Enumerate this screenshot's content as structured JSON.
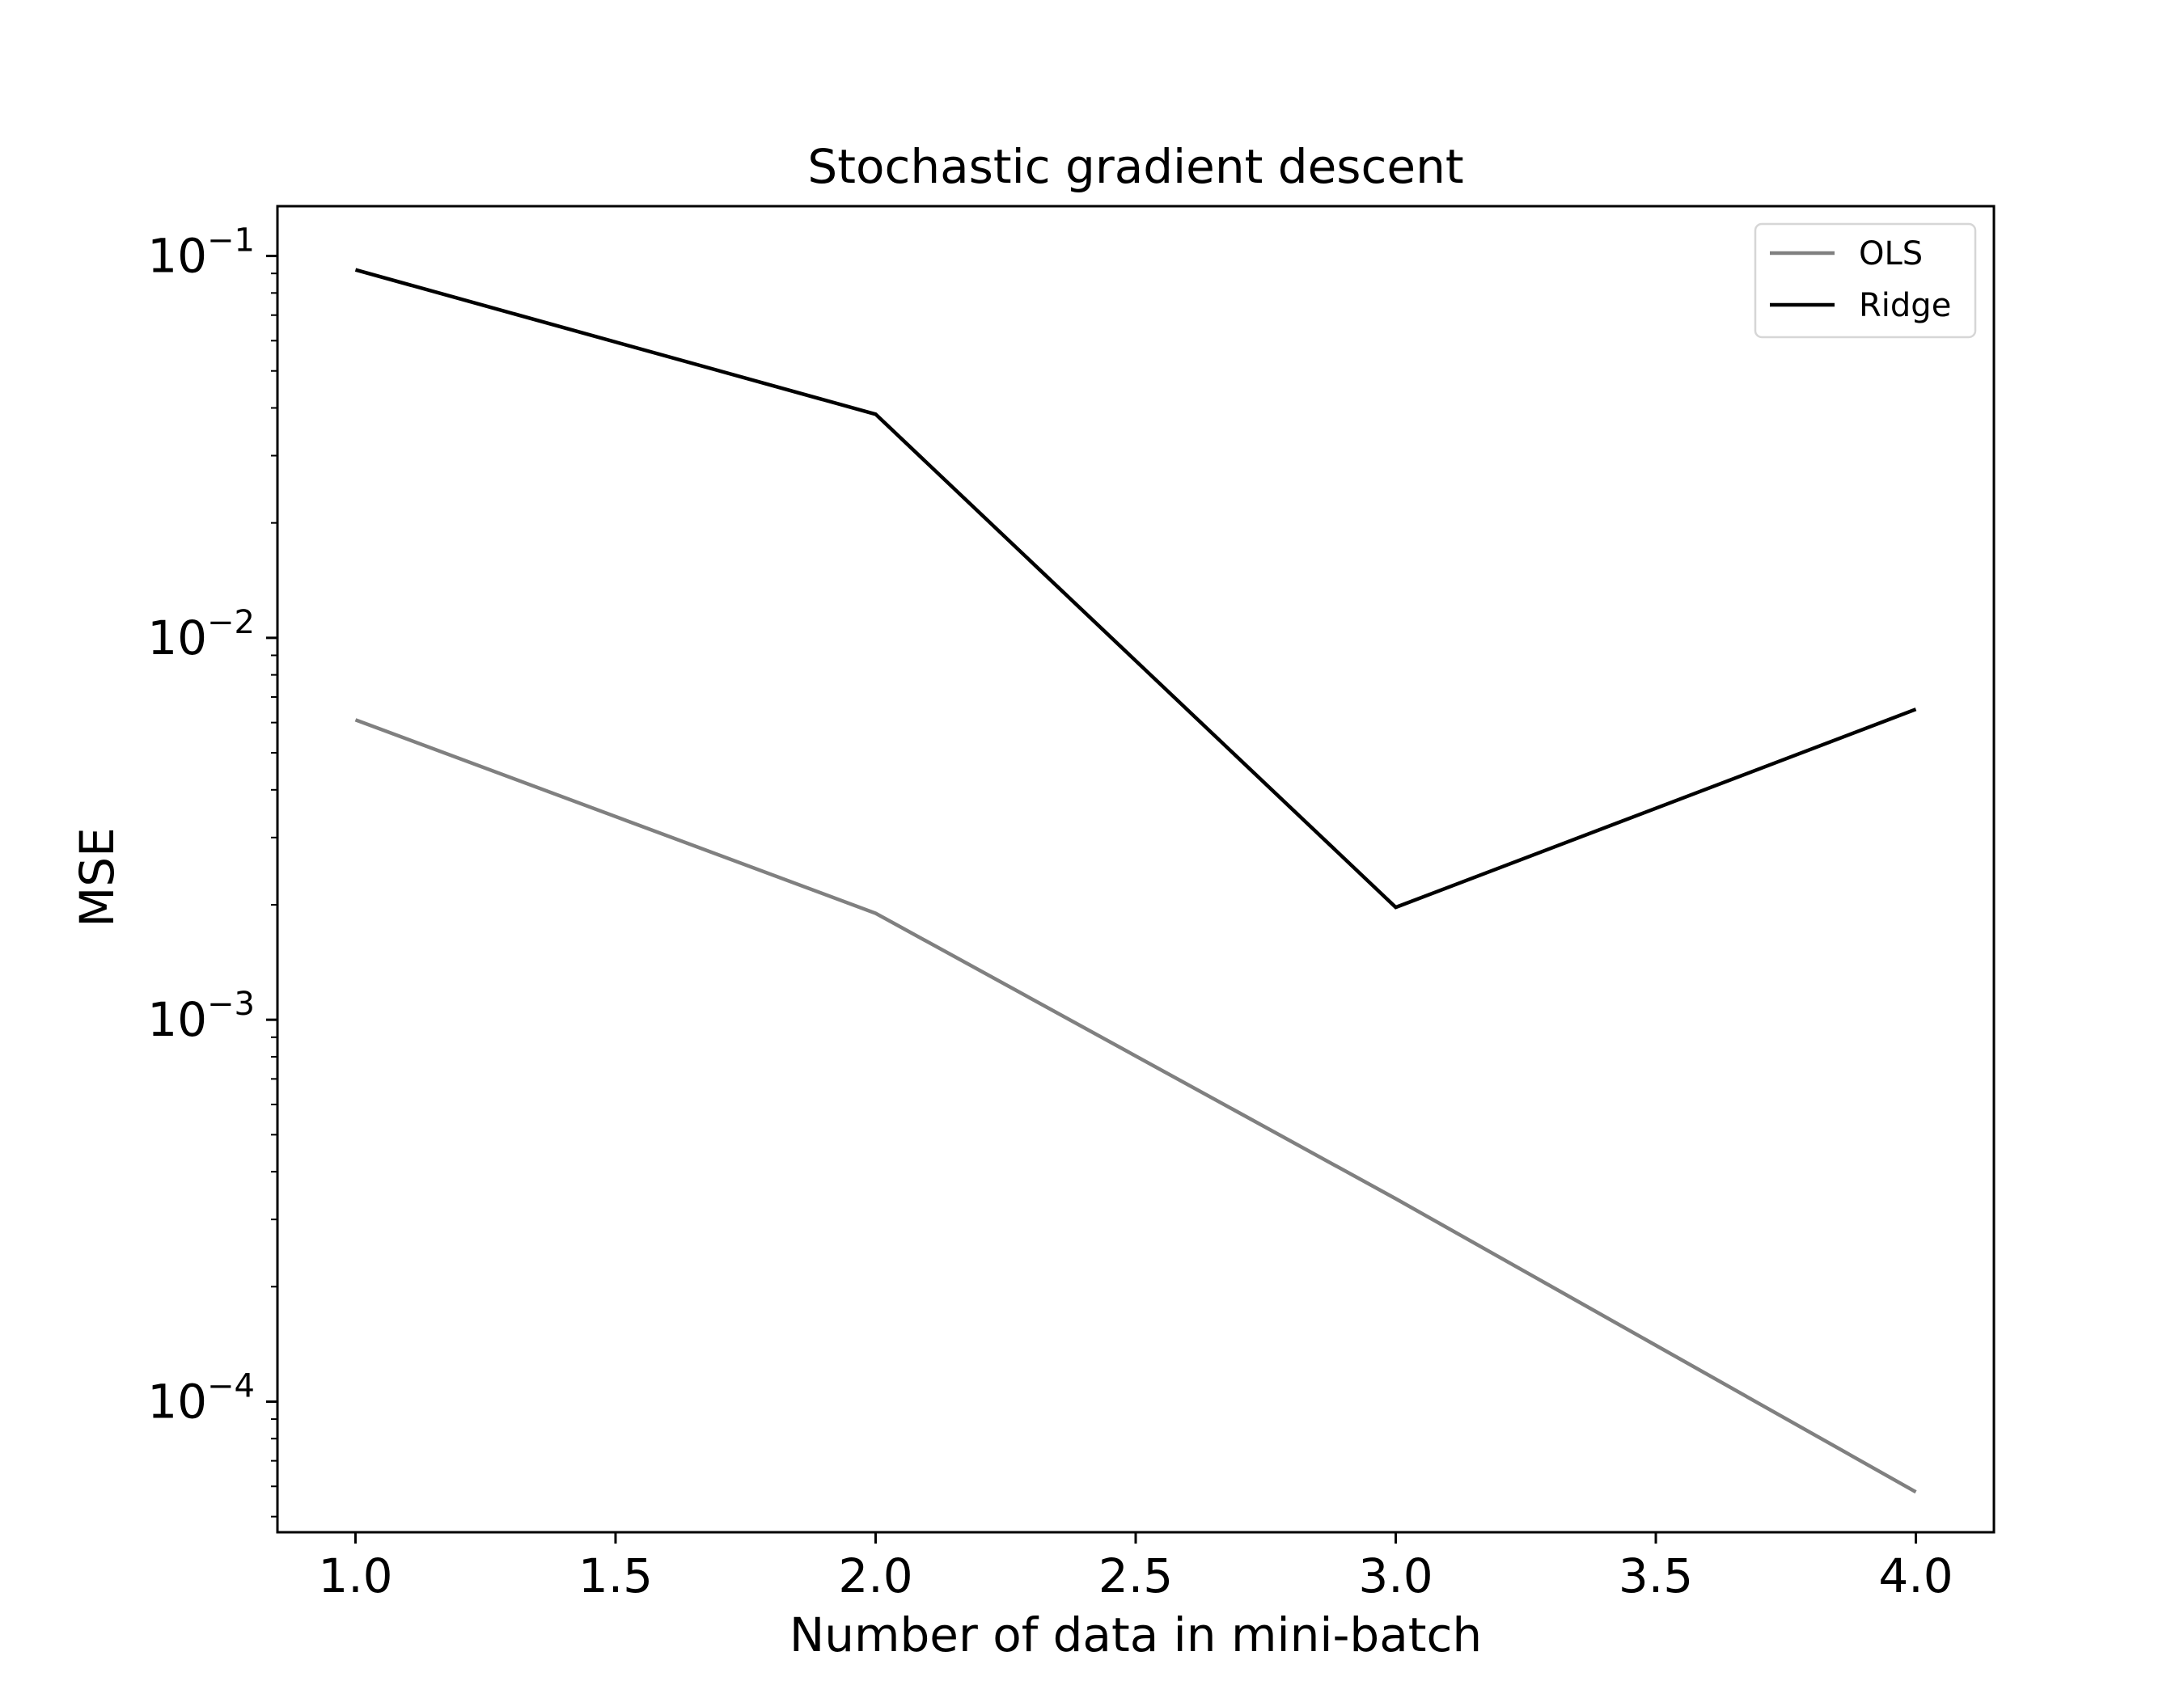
{
  "chart_data": {
    "type": "line",
    "title": "Stochastic gradient descent",
    "xlabel": "Number of data in mini-batch",
    "ylabel": "MSE",
    "yscale": "log",
    "xlim": [
      0.85,
      4.15
    ],
    "ylim": [
      4.55e-05,
      0.135
    ],
    "x_ticks": [
      1.0,
      1.5,
      2.0,
      2.5,
      3.0,
      3.5,
      4.0
    ],
    "x_tick_labels": [
      "1.0",
      "1.5",
      "2.0",
      "2.5",
      "3.0",
      "3.5",
      "4.0"
    ],
    "y_ticks": [
      {
        "value": 0.1,
        "base": "10",
        "exponent": "−1"
      },
      {
        "value": 0.01,
        "base": "10",
        "exponent": "−2"
      },
      {
        "value": 0.001,
        "base": "10",
        "exponent": "−3"
      },
      {
        "value": 0.0001,
        "base": "10",
        "exponent": "−4"
      }
    ],
    "grid": false,
    "legend_position": "top-right",
    "series": [
      {
        "name": "OLS",
        "color": "#808080",
        "x": [
          1,
          2,
          3,
          4
        ],
        "y": [
          0.0061,
          0.0019,
          0.00034,
          5.8e-05
        ]
      },
      {
        "name": "Ridge",
        "color": "#000000",
        "x": [
          1,
          2,
          3,
          4
        ],
        "y": [
          0.092,
          0.0385,
          0.00197,
          0.0065
        ]
      }
    ]
  }
}
